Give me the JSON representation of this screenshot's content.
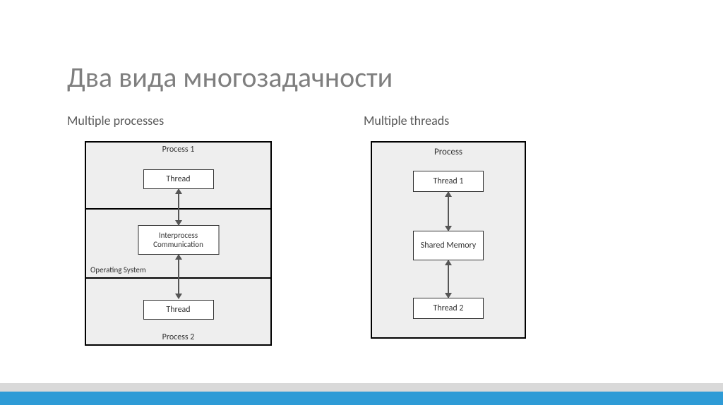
{
  "title": "Два вида многозадачности",
  "colors": {
    "title_text": "#7f7f7f",
    "subtitle_text": "#595959",
    "box_bg": "#eeeeee",
    "box_border": "#000000",
    "inner_border": "#333333",
    "arrow": "#555555",
    "footer_gray": "#d9d9d9",
    "footer_blue": "#2e9bd6",
    "page_bg": "#ffffff"
  },
  "left": {
    "subtitle": "Multiple processes",
    "diagram": {
      "type": "flowchart",
      "nodes": [
        {
          "id": "p1",
          "label": "Process 1",
          "role": "section-top"
        },
        {
          "id": "t1",
          "label": "Thread",
          "role": "box",
          "parent": "p1"
        },
        {
          "id": "os",
          "label": "Operating System",
          "role": "section-mid-label"
        },
        {
          "id": "ipc",
          "label": "Interprocess Communication",
          "role": "box",
          "parent": "os"
        },
        {
          "id": "p2",
          "label": "Process 2",
          "role": "section-bottom"
        },
        {
          "id": "t2",
          "label": "Thread",
          "role": "box",
          "parent": "p2"
        }
      ],
      "edges": [
        {
          "from": "t1",
          "to": "ipc",
          "style": "double-arrow"
        },
        {
          "from": "ipc",
          "to": "t2",
          "style": "double-arrow"
        }
      ],
      "box_font_size": 12,
      "container_width": 265,
      "container_height": 290
    }
  },
  "right": {
    "subtitle": "Multiple threads",
    "diagram": {
      "type": "flowchart",
      "container_label": "Process",
      "nodes": [
        {
          "id": "th1",
          "label": "Thread 1",
          "role": "box"
        },
        {
          "id": "shm",
          "label": "Shared Memory",
          "role": "box"
        },
        {
          "id": "th2",
          "label": "Thread 2",
          "role": "box"
        }
      ],
      "edges": [
        {
          "from": "th1",
          "to": "shm",
          "style": "double-arrow"
        },
        {
          "from": "shm",
          "to": "th2",
          "style": "double-arrow"
        }
      ],
      "box_font_size": 12,
      "container_width": 220,
      "container_height": 280
    }
  }
}
